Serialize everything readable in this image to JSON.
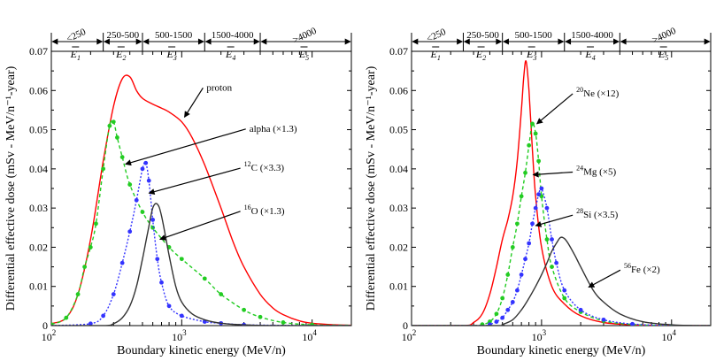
{
  "chart_data": [
    {
      "type": "line",
      "panel": "left",
      "xlabel": "Boundary kinetic energy (MeV/n)",
      "ylabel": "Differential effective dose (mSv - MeV/n⁻¹-year)",
      "xscale": "log",
      "xlim": [
        100,
        20000
      ],
      "ylim": [
        0,
        0.07
      ],
      "xticks": [
        {
          "value": 100,
          "base": "10",
          "exp": "2"
        },
        {
          "value": 1000,
          "base": "10",
          "exp": "3"
        },
        {
          "value": 10000,
          "base": "10",
          "exp": "4"
        }
      ],
      "yticks": [
        "0",
        "0.01",
        "0.02",
        "0.03",
        "0.04",
        "0.05",
        "0.06",
        "0.07"
      ],
      "energy_ranges": [
        {
          "label": "<250",
          "bar": "E",
          "sub": "1",
          "from": 100,
          "to": 250
        },
        {
          "label": "250-500",
          "bar": "E",
          "sub": "2",
          "from": 250,
          "to": 500
        },
        {
          "label": "500-1500",
          "bar": "E",
          "sub": "3",
          "from": 500,
          "to": 1500
        },
        {
          "label": "1500-4000",
          "bar": "E",
          "sub": "4",
          "from": 1500,
          "to": 4000
        },
        {
          "label": ">4000",
          "bar": "E",
          "sub": "5",
          "from": 4000,
          "to": 20000
        }
      ],
      "series": [
        {
          "name": "proton",
          "label_pre": "",
          "label_sup": "",
          "label_main": "proton",
          "color": "#ff0000",
          "dash": "",
          "markers": false,
          "x": [
            100,
            130,
            160,
            200,
            250,
            300,
            350,
            400,
            450,
            500,
            600,
            700,
            800,
            1000,
            1200,
            1500,
            2000,
            2500,
            3000,
            4000,
            5000,
            6000,
            8000,
            10000,
            15000,
            20000
          ],
          "y": [
            0.0005,
            0.002,
            0.008,
            0.022,
            0.042,
            0.056,
            0.063,
            0.0635,
            0.06,
            0.058,
            0.0565,
            0.0555,
            0.0545,
            0.052,
            0.048,
            0.041,
            0.03,
            0.021,
            0.015,
            0.008,
            0.0045,
            0.0028,
            0.0012,
            0.0006,
            0.0002,
            0.0001
          ],
          "label_at": [
            1550,
            0.06
          ],
          "arrow_to": [
            1050,
            0.0532
          ]
        },
        {
          "name": "alpha",
          "label_pre": "",
          "label_sup": "",
          "label_main": "alpha (×1.3)",
          "color": "#22cc22",
          "dash": "4,3",
          "markers": true,
          "x": [
            100,
            130,
            160,
            180,
            200,
            220,
            250,
            280,
            300,
            320,
            350,
            400,
            500,
            600,
            800,
            1000,
            1500,
            2000,
            3000,
            4000,
            6000,
            10000,
            20000
          ],
          "y": [
            0.0003,
            0.002,
            0.008,
            0.015,
            0.02,
            0.026,
            0.04,
            0.051,
            0.052,
            0.048,
            0.043,
            0.036,
            0.029,
            0.025,
            0.02,
            0.017,
            0.012,
            0.008,
            0.004,
            0.0022,
            0.0008,
            0.0002,
            0.0001
          ],
          "label_at": [
            3300,
            0.0495
          ],
          "arrow_to": [
            370,
            0.0412
          ]
        },
        {
          "name": "12C",
          "label_pre": "",
          "label_sup": "12",
          "label_main": "C (×3.3)",
          "color": "#3333ff",
          "dash": "2,2",
          "markers": true,
          "x": [
            100,
            200,
            250,
            300,
            350,
            400,
            450,
            500,
            530,
            560,
            600,
            650,
            700,
            800,
            1000,
            1500,
            2000,
            3000,
            5000,
            10000,
            20000
          ],
          "y": [
            0,
            0.0005,
            0.0025,
            0.008,
            0.016,
            0.024,
            0.032,
            0.04,
            0.0415,
            0.037,
            0.027,
            0.017,
            0.011,
            0.005,
            0.0025,
            0.001,
            0.0006,
            0.0002,
            0.0001,
            0,
            0
          ],
          "label_at": [
            3000,
            0.0395
          ],
          "arrow_to": [
            560,
            0.0338
          ]
        },
        {
          "name": "16O",
          "label_pre": "",
          "label_sup": "16",
          "label_main": "O (×1.3)",
          "color": "#333333",
          "dash": "",
          "markers": false,
          "x": [
            100,
            250,
            300,
            350,
            400,
            450,
            500,
            550,
            600,
            650,
            700,
            800,
            900,
            1000,
            1200,
            1500,
            2000,
            3000,
            5000,
            10000,
            20000
          ],
          "y": [
            0,
            0,
            0.0005,
            0.002,
            0.005,
            0.01,
            0.017,
            0.024,
            0.03,
            0.031,
            0.028,
            0.018,
            0.01,
            0.006,
            0.003,
            0.0015,
            0.0006,
            0.0002,
            0,
            0,
            0
          ],
          "label_at": [
            3000,
            0.0285
          ],
          "arrow_to": [
            680,
            0.022
          ]
        }
      ]
    },
    {
      "type": "line",
      "panel": "right",
      "xlabel": "Boundary kinetic energy (MeV/n)",
      "ylabel": "Differential effective dose (mSv - MeV/n⁻¹-year)",
      "xscale": "log",
      "xlim": [
        100,
        20000
      ],
      "ylim": [
        0,
        0.07
      ],
      "xticks": [
        {
          "value": 100,
          "base": "10",
          "exp": "2"
        },
        {
          "value": 1000,
          "base": "10",
          "exp": "3"
        },
        {
          "value": 10000,
          "base": "10",
          "exp": "4"
        }
      ],
      "yticks": [
        "0",
        "0.01",
        "0.02",
        "0.03",
        "0.04",
        "0.05",
        "0.06",
        "0.07"
      ],
      "energy_ranges": [
        {
          "label": "<250",
          "bar": "E",
          "sub": "1",
          "from": 100,
          "to": 250
        },
        {
          "label": "250-500",
          "bar": "E",
          "sub": "2",
          "from": 250,
          "to": 500
        },
        {
          "label": "500-1500",
          "bar": "E",
          "sub": "3",
          "from": 500,
          "to": 1500
        },
        {
          "label": "1500-4000",
          "bar": "E",
          "sub": "4",
          "from": 1500,
          "to": 4000
        },
        {
          "label": ">4000",
          "bar": "E",
          "sub": "5",
          "from": 4000,
          "to": 20000
        }
      ],
      "series": [
        {
          "name": "20Ne",
          "label_pre": "",
          "label_sup": "20",
          "label_main": "Ne (×12)",
          "color": "#ff0000",
          "dash": "",
          "markers": false,
          "x": [
            100,
            250,
            300,
            350,
            400,
            450,
            500,
            550,
            600,
            650,
            700,
            730,
            760,
            800,
            850,
            900,
            1000,
            1200,
            1500,
            2000,
            3000,
            5000,
            10000,
            20000
          ],
          "y": [
            0,
            0,
            0.0008,
            0.003,
            0.008,
            0.015,
            0.022,
            0.027,
            0.033,
            0.042,
            0.055,
            0.0635,
            0.0675,
            0.06,
            0.045,
            0.033,
            0.02,
            0.01,
            0.0055,
            0.0025,
            0.0008,
            0.0002,
            0,
            0
          ],
          "label_at": [
            1850,
            0.0585
          ],
          "arrow_to": [
            920,
            0.0515
          ]
        },
        {
          "name": "24Mg",
          "label_pre": "",
          "label_sup": "24",
          "label_main": "Mg (×5)",
          "color": "#22cc22",
          "dash": "4,3",
          "markers": true,
          "x": [
            100,
            300,
            350,
            400,
            450,
            500,
            550,
            600,
            650,
            700,
            750,
            800,
            850,
            900,
            950,
            1000,
            1100,
            1200,
            1500,
            2000,
            3000,
            5000,
            10000,
            20000
          ],
          "y": [
            0,
            0,
            0.0003,
            0.001,
            0.003,
            0.007,
            0.013,
            0.02,
            0.026,
            0.033,
            0.039,
            0.046,
            0.0515,
            0.049,
            0.042,
            0.033,
            0.022,
            0.015,
            0.007,
            0.0035,
            0.0012,
            0.0003,
            0,
            0
          ],
          "label_at": [
            1850,
            0.0385
          ],
          "arrow_to": [
            860,
            0.0385
          ]
        },
        {
          "name": "28Si",
          "label_pre": "",
          "label_sup": "28",
          "label_main": "Si (×3.5)",
          "color": "#3333ff",
          "dash": "2,2",
          "markers": true,
          "x": [
            100,
            350,
            400,
            450,
            500,
            550,
            600,
            650,
            700,
            750,
            800,
            850,
            900,
            950,
            1000,
            1100,
            1200,
            1300,
            1500,
            2000,
            3000,
            5000,
            10000,
            20000
          ],
          "y": [
            0,
            0,
            0.0003,
            0.001,
            0.002,
            0.004,
            0.006,
            0.009,
            0.013,
            0.017,
            0.021,
            0.026,
            0.03,
            0.0335,
            0.035,
            0.03,
            0.022,
            0.016,
            0.009,
            0.004,
            0.0015,
            0.0004,
            0,
            0
          ],
          "label_at": [
            1850,
            0.0275
          ],
          "arrow_to": [
            900,
            0.0255
          ]
        },
        {
          "name": "56Fe",
          "label_pre": "",
          "label_sup": "56",
          "label_main": "Fe (×2)",
          "color": "#333333",
          "dash": "",
          "markers": false,
          "x": [
            100,
            450,
            500,
            600,
            700,
            800,
            900,
            1000,
            1100,
            1200,
            1300,
            1400,
            1500,
            1600,
            1800,
            2000,
            2500,
            3000,
            4000,
            6000,
            10000,
            20000
          ],
          "y": [
            0,
            0,
            0.0003,
            0.0015,
            0.004,
            0.007,
            0.01,
            0.013,
            0.016,
            0.019,
            0.021,
            0.0225,
            0.0222,
            0.021,
            0.018,
            0.015,
            0.009,
            0.006,
            0.003,
            0.001,
            0.0002,
            0
          ],
          "label_at": [
            4300,
            0.0135
          ],
          "arrow_to": [
            2300,
            0.0098
          ]
        }
      ]
    }
  ]
}
